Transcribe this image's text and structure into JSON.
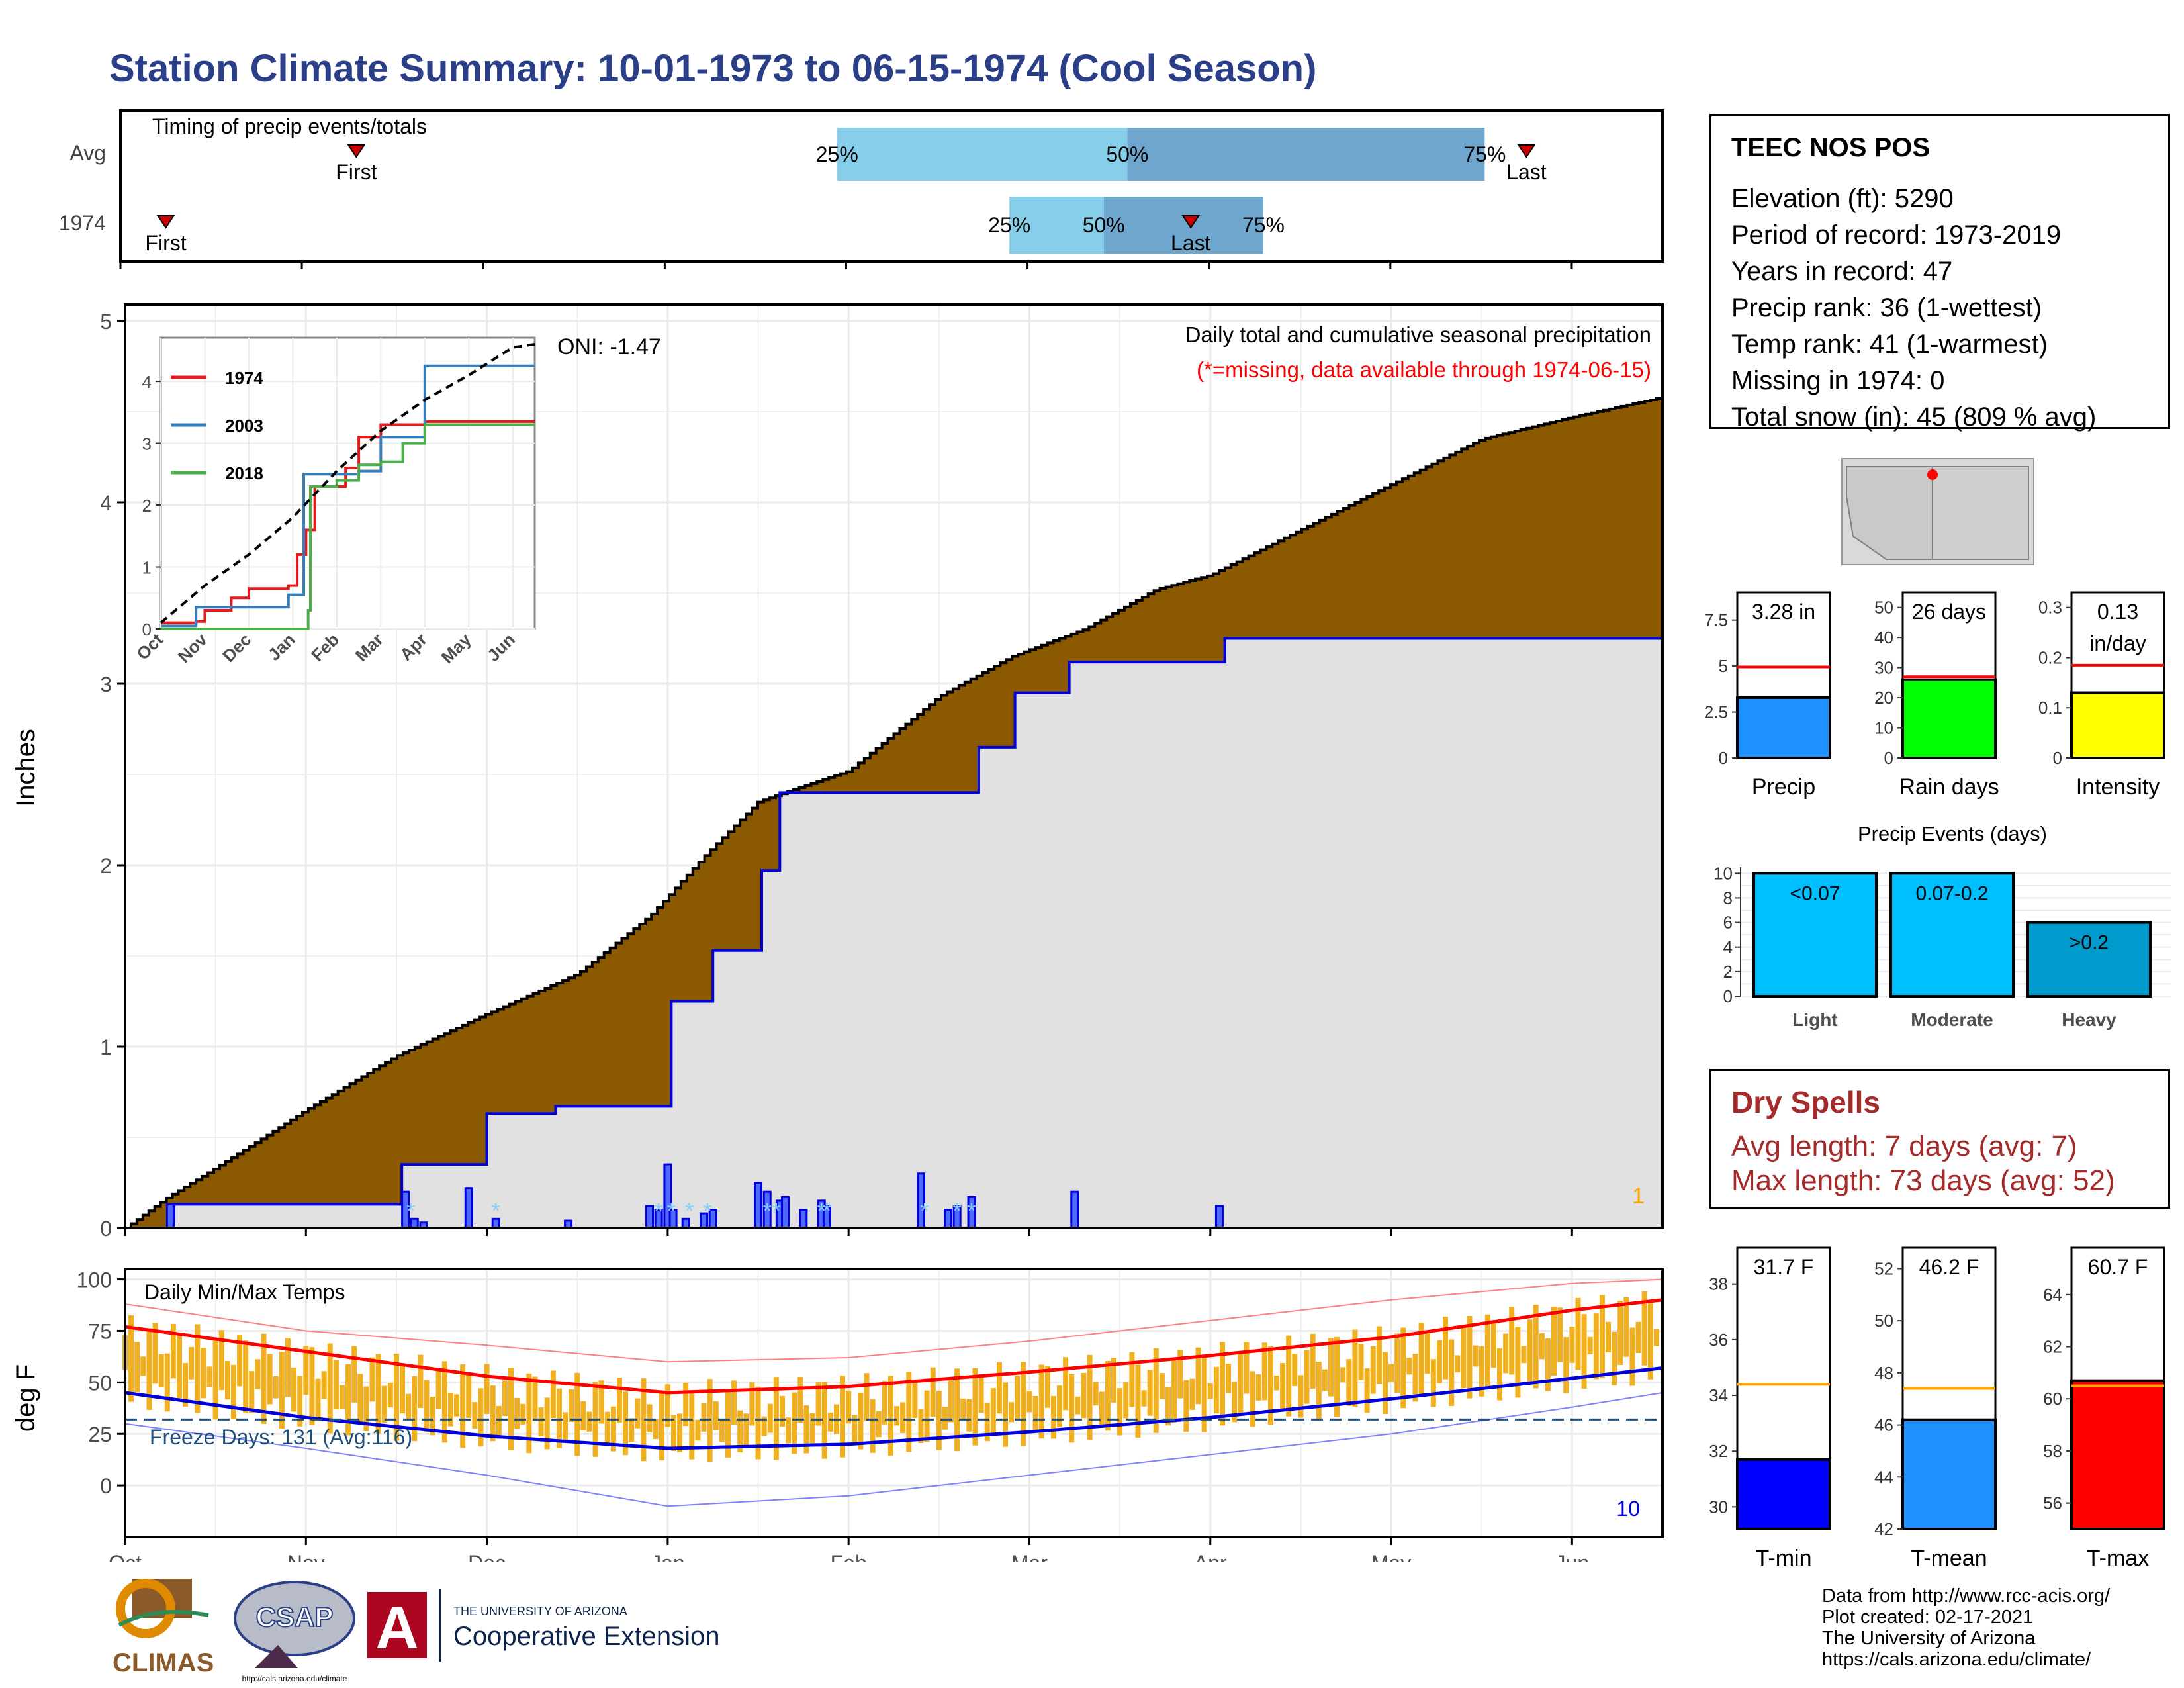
{
  "title": "Station Climate Summary: 10-01-1973 to 06-15-1974 (Cool Season)",
  "timing": {
    "title": "Timing of precip events/totals",
    "row_labels": [
      "Avg",
      "1974"
    ],
    "avg": {
      "first": 1.3,
      "last": 7.75,
      "p25": 3.95,
      "p50": 5.55,
      "p75": 7.52,
      "first_label": "First",
      "last_label": "Last",
      "p25_label": "25%",
      "p50_label": "50%",
      "p75_label": "75%"
    },
    "y1974": {
      "first": 0.25,
      "last": 5.9,
      "p25": 4.9,
      "p50": 5.42,
      "p75": 6.3,
      "first_label": "First",
      "last_label": "Last",
      "p25_label": "25%",
      "p50_label": "50%",
      "p75_label": "75%"
    },
    "colors": {
      "light": "#87ceeb",
      "dark": "#6fa6cd",
      "marker": "#cc0000"
    }
  },
  "chart_data": [
    {
      "id": "main-precip",
      "type": "area",
      "title": "Daily total and cumulative seasonal precipitation",
      "subtitle": "(*=missing, data available through 1974-06-15)",
      "ylabel": "Inches",
      "ylim": [
        0,
        5
      ],
      "yticks": [
        0,
        1,
        2,
        3,
        4,
        5
      ],
      "x_unit": "months since Oct 1",
      "xlim": [
        0,
        8.5
      ],
      "oni_label": "ONI: -1.47",
      "corner_count": "1",
      "avg_cumulative": {
        "x": [
          0,
          0.25,
          0.5,
          1.0,
          1.5,
          2.0,
          2.5,
          2.9,
          3.2,
          3.5,
          4.0,
          4.5,
          4.9,
          5.3,
          5.7,
          6.0,
          6.5,
          7.0,
          7.5,
          8.0,
          8.5
        ],
        "y": [
          0,
          0.18,
          0.33,
          0.65,
          0.95,
          1.18,
          1.4,
          1.72,
          2.05,
          2.35,
          2.52,
          2.93,
          3.15,
          3.3,
          3.52,
          3.6,
          3.85,
          4.1,
          4.35,
          4.47,
          4.58
        ]
      },
      "cumulative_1974": {
        "x": [
          0,
          0.25,
          0.27,
          1.2,
          1.5,
          1.53,
          2.0,
          2.35,
          2.38,
          2.8,
          3.0,
          3.02,
          3.15,
          3.25,
          3.5,
          3.52,
          3.6,
          3.62,
          4.7,
          4.72,
          4.9,
          4.92,
          5.2,
          5.22,
          6.05,
          6.08,
          8.5
        ],
        "y": [
          0,
          0.02,
          0.13,
          0.13,
          0.13,
          0.35,
          0.63,
          0.63,
          0.67,
          0.67,
          0.67,
          1.25,
          1.25,
          1.53,
          1.53,
          1.97,
          1.97,
          2.4,
          2.4,
          2.65,
          2.65,
          2.95,
          2.95,
          3.12,
          3.12,
          3.25,
          3.25
        ]
      },
      "daily_bars": {
        "x": [
          0.25,
          1.55,
          1.6,
          1.65,
          1.9,
          2.05,
          2.45,
          2.9,
          2.95,
          3.0,
          3.03,
          3.1,
          3.2,
          3.25,
          3.5,
          3.55,
          3.62,
          3.65,
          3.75,
          3.85,
          3.88,
          4.4,
          4.55,
          4.6,
          4.68,
          5.25,
          6.05
        ],
        "y": [
          0.13,
          0.2,
          0.05,
          0.03,
          0.22,
          0.05,
          0.04,
          0.12,
          0.1,
          0.35,
          0.1,
          0.05,
          0.08,
          0.1,
          0.25,
          0.2,
          0.15,
          0.17,
          0.1,
          0.15,
          0.12,
          0.3,
          0.1,
          0.12,
          0.17,
          0.2,
          0.12
        ]
      },
      "snow_markers_x": [
        1.58,
        2.05,
        2.95,
        3.02,
        3.12,
        3.22,
        3.55,
        3.6,
        3.85,
        3.88,
        4.42,
        4.6,
        4.68
      ],
      "colors": {
        "fill_above": "#8b5a00",
        "fill_below": "#1f8b1f",
        "gray": "#e1e1e1",
        "line1974": "#0000dd",
        "snow": "#87cefa",
        "count": "#ffa500"
      }
    },
    {
      "id": "inset-cumulative",
      "type": "line",
      "ylim": [
        0,
        4.6
      ],
      "yticks": [
        0,
        1,
        2,
        3,
        4
      ],
      "categories": [
        "Oct",
        "Nov",
        "Dec",
        "Jan",
        "Feb",
        "Mar",
        "Apr",
        "May",
        "Jun"
      ],
      "series": [
        {
          "name": "1974",
          "color": "#e41a1c",
          "x": [
            0,
            0.8,
            1.0,
            1.6,
            2.0,
            2.9,
            3.1,
            3.3,
            3.5,
            4.2,
            4.5,
            5.0,
            6.0,
            8.5
          ],
          "y": [
            0.1,
            0.12,
            0.3,
            0.5,
            0.65,
            0.7,
            1.2,
            1.6,
            2.3,
            2.6,
            3.1,
            3.3,
            3.35,
            3.35
          ]
        },
        {
          "name": "2003",
          "color": "#377eb8",
          "x": [
            0,
            0.8,
            1.5,
            2.9,
            3.2,
            3.25,
            4.5,
            5.0,
            6.0,
            8.5
          ],
          "y": [
            0.05,
            0.35,
            0.35,
            0.55,
            0.55,
            2.5,
            2.55,
            3.1,
            4.25,
            4.25
          ]
        },
        {
          "name": "2018",
          "color": "#4daf4a",
          "x": [
            0,
            3.2,
            3.35,
            3.4,
            4.0,
            4.5,
            5.0,
            5.5,
            6.0,
            8.5
          ],
          "y": [
            0,
            0,
            0.3,
            2.3,
            2.4,
            2.65,
            2.7,
            3.0,
            3.3,
            3.3
          ]
        },
        {
          "name": "Avg",
          "color": "#000000",
          "dash": true,
          "x": [
            0,
            1.0,
            2.0,
            3.0,
            4.0,
            5.0,
            6.0,
            7.0,
            8.0,
            8.5
          ],
          "y": [
            0.1,
            0.7,
            1.2,
            1.8,
            2.55,
            3.2,
            3.7,
            4.1,
            4.55,
            4.6
          ]
        }
      ]
    },
    {
      "id": "daily-temps",
      "type": "line",
      "title": "Daily Min/Max Temps",
      "ylabel": "deg F",
      "ylim": [
        -25,
        105
      ],
      "yticks": [
        0,
        25,
        50,
        75,
        100
      ],
      "categories": [
        "Oct",
        "Nov",
        "Dec",
        "Jan",
        "Feb",
        "Mar",
        "Apr",
        "May",
        "Jun"
      ],
      "freeze_label": "Freeze Days: 131 (Avg:116)",
      "freeze_line": 32,
      "corner_count": "10",
      "avg_max": {
        "x": [
          0,
          1,
          2,
          3,
          4,
          5,
          6,
          7,
          8,
          8.5
        ],
        "y": [
          77,
          65,
          53,
          45,
          48,
          55,
          63,
          72,
          85,
          90
        ]
      },
      "avg_min": {
        "x": [
          0,
          1,
          2,
          3,
          4,
          5,
          6,
          7,
          8,
          8.5
        ],
        "y": [
          45,
          33,
          24,
          18,
          20,
          26,
          33,
          42,
          52,
          57
        ]
      },
      "record_max": {
        "x": [
          0,
          1,
          2,
          3,
          4,
          5,
          6,
          7,
          8,
          8.5
        ],
        "y": [
          88,
          75,
          68,
          60,
          62,
          70,
          80,
          90,
          98,
          100
        ]
      },
      "record_min": {
        "x": [
          0,
          1,
          2,
          3,
          4,
          5,
          6,
          7,
          8,
          8.5
        ],
        "y": [
          30,
          18,
          5,
          -10,
          -5,
          5,
          15,
          25,
          38,
          45
        ]
      },
      "colors": {
        "bars": "#f0b020",
        "max": "#ff0000",
        "min": "#0000dd",
        "freeze": "#1f4e79"
      }
    },
    {
      "id": "precip-summary",
      "type": "bar",
      "panels": [
        {
          "label": "Precip",
          "value": 3.28,
          "value_label": "3.28 in",
          "avg": 4.95,
          "ylim": [
            0,
            9
          ],
          "yticks": [
            0,
            2.5,
            5.0,
            7.5
          ],
          "color": "#1e90ff"
        },
        {
          "label": "Rain days",
          "value": 26,
          "value_label": "26 days",
          "avg": 27,
          "ylim": [
            0,
            55
          ],
          "yticks": [
            0,
            10,
            20,
            30,
            40,
            50
          ],
          "color": "#00ff00"
        },
        {
          "label": "Intensity",
          "value": 0.13,
          "value_label": "0.13\nin/day",
          "avg": 0.185,
          "ylim": [
            0,
            0.33
          ],
          "yticks": [
            0.0,
            0.1,
            0.2,
            0.3
          ],
          "color": "#ffff00"
        }
      ]
    },
    {
      "id": "precip-events",
      "type": "bar",
      "title": "Precip Events (days)",
      "categories": [
        "Light",
        "Moderate",
        "Heavy"
      ],
      "bar_labels": [
        "<0.07",
        "0.07-0.2",
        ">0.2"
      ],
      "values": [
        10,
        10,
        6
      ],
      "ylim": [
        0,
        10.5
      ],
      "yticks": [
        0,
        2,
        4,
        6,
        8,
        10
      ],
      "colors": [
        "#00bfff",
        "#00bfff",
        "#009acd"
      ]
    },
    {
      "id": "temp-summary",
      "type": "bar",
      "panels": [
        {
          "label": "T-min",
          "value": 31.7,
          "value_label": "31.7 F",
          "avg": 34.4,
          "ylim": [
            29.2,
            39.3
          ],
          "yticks": [
            30,
            32,
            34,
            36,
            38
          ],
          "color": "#0000ff"
        },
        {
          "label": "T-mean",
          "value": 46.2,
          "value_label": "46.2 F",
          "avg": 47.4,
          "ylim": [
            42,
            52.8
          ],
          "yticks": [
            42,
            44,
            46,
            48,
            50,
            52
          ],
          "color": "#1e90ff"
        },
        {
          "label": "T-max",
          "value": 60.7,
          "value_label": "60.7 F",
          "avg": 60.5,
          "ylim": [
            55,
            65.8
          ],
          "yticks": [
            56,
            58,
            60,
            62,
            64
          ],
          "color": "#ff0000"
        }
      ]
    }
  ],
  "station": {
    "name": "TEEC NOS POS",
    "lines": [
      "Elevation (ft): 5290",
      "Period of record: 1973-2019",
      "Years in record: 47",
      "Precip rank: 36 (1-wettest)",
      "Temp rank: 41 (1-warmest)",
      "Missing in 1974: 0",
      "Total snow (in): 45 (809 % avg)"
    ]
  },
  "dry_spells": {
    "title": "Dry Spells",
    "avg_line": "Avg length: 7 days (avg: 7)",
    "max_line": "Max length: 73 days (avg: 52)"
  },
  "credits": [
    "Data from http://www.rcc-acis.org/",
    "Plot created: 02-17-2021",
    "The University of Arizona",
    "https://cals.arizona.edu/climate/"
  ],
  "logos": {
    "climas": "CLIMAS",
    "csap": "CSAP",
    "csap_url": "http://cals.arizona.edu/climate",
    "ua_small": "THE UNIVERSITY OF ARIZONA",
    "ua_big": "Cooperative Extension",
    "ua_letter": "A"
  }
}
